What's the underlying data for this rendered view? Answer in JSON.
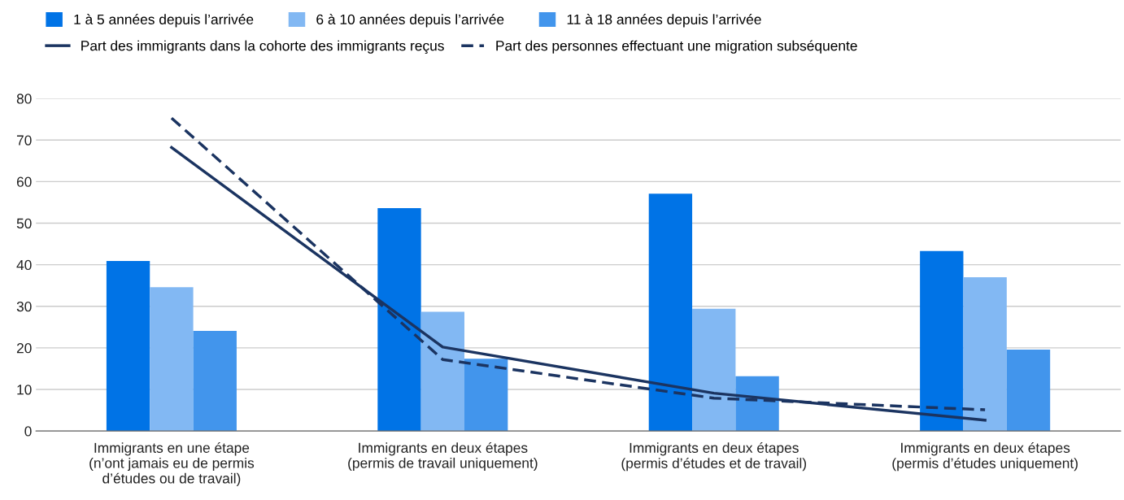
{
  "chart_data": {
    "type": "bar",
    "categories": [
      "Immigrants en une étape\n(n’ont jamais eu de permis\nd’études ou de travail)",
      "Immigrants en deux étapes\n(permis de travail uniquement)",
      "Immigrants en deux étapes\n(permis d’études et de travail)",
      "Immigrants en deux étapes\n(permis d’études uniquement)"
    ],
    "series": [
      {
        "name": "1 à 5 années depuis l’arrivée",
        "color": "#0073e6",
        "values": [
          40.9,
          53.6,
          57.1,
          43.3
        ]
      },
      {
        "name": "6 à 10 années depuis l’arrivée",
        "color": "#82b8f3",
        "values": [
          34.6,
          28.7,
          29.4,
          37.0
        ]
      },
      {
        "name": "11 à 18 années depuis l’arrivée",
        "color": "#4295ec",
        "values": [
          24.1,
          17.4,
          13.2,
          19.6
        ]
      },
      {
        "name": "Part des immigrants dans la cohorte des immigrants reçus",
        "type": "line",
        "line_style": "solid",
        "color": "#1b3461",
        "values": [
          68.2,
          20.2,
          9.1,
          2.6
        ]
      },
      {
        "name": "Part des personnes effectuant une migration subséquente",
        "type": "line",
        "line_style": "dashed",
        "color": "#1b3461",
        "values": [
          75.3,
          17.2,
          7.9,
          5.1
        ]
      }
    ],
    "ylim": [
      0,
      80
    ],
    "yticks": [
      0,
      10,
      20,
      30,
      40,
      50,
      60,
      70,
      80
    ],
    "grid": "y",
    "legend": "top left"
  }
}
